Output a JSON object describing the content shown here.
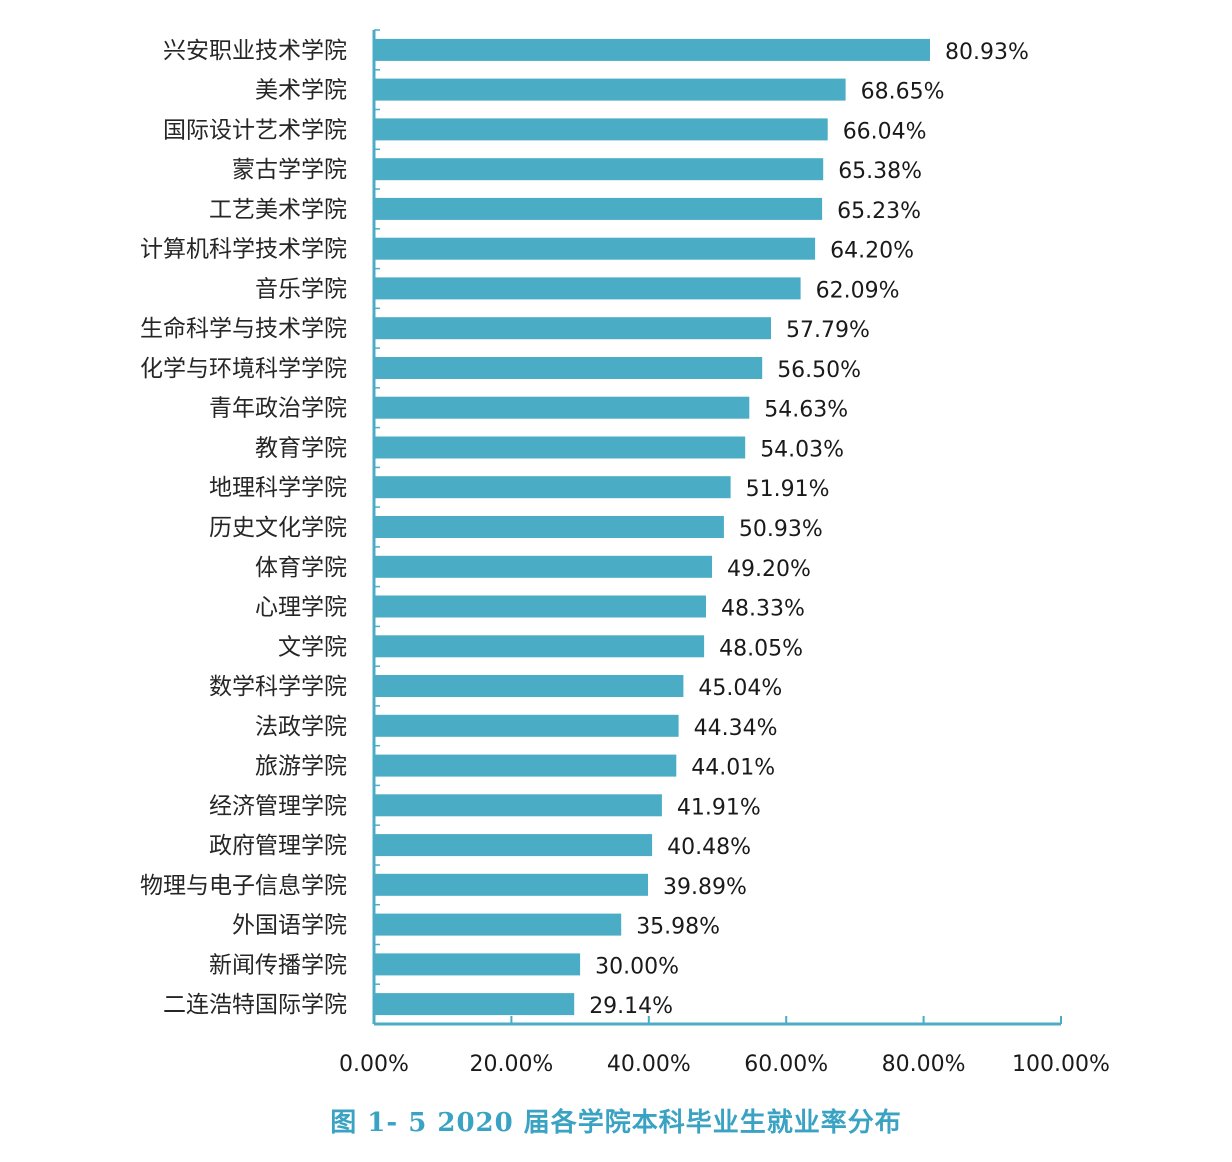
{
  "caption": "图 1- 5  2020 届各学院本科毕业生就业率分布",
  "colors": {
    "bar": "#4bacc6",
    "axis": "#4bacc6",
    "caption": "#3aa2c2"
  },
  "chart_data": {
    "type": "bar",
    "orientation": "horizontal",
    "categories": [
      "兴安职业技术学院",
      "美术学院",
      "国际设计艺术学院",
      "蒙古学学院",
      "工艺美术学院",
      "计算机科学技术学院",
      "音乐学院",
      "生命科学与技术学院",
      "化学与环境科学学院",
      "青年政治学院",
      "教育学院",
      "地理科学学院",
      "历史文化学院",
      "体育学院",
      "心理学院",
      "文学院",
      "数学科学学院",
      "法政学院",
      "旅游学院",
      "经济管理学院",
      "政府管理学院",
      "物理与电子信息学院",
      "外国语学院",
      "新闻传播学院",
      "二连浩特国际学院"
    ],
    "values": [
      80.93,
      68.65,
      66.04,
      65.38,
      65.23,
      64.2,
      62.09,
      57.79,
      56.5,
      54.63,
      54.03,
      51.91,
      50.93,
      49.2,
      48.33,
      48.05,
      45.04,
      44.34,
      44.01,
      41.91,
      40.48,
      39.89,
      35.98,
      30.0,
      29.14
    ],
    "value_labels": [
      "80.93%",
      "68.65%",
      "66.04%",
      "65.38%",
      "65.23%",
      "64.20%",
      "62.09%",
      "57.79%",
      "56.50%",
      "54.63%",
      "54.03%",
      "51.91%",
      "50.93%",
      "49.20%",
      "48.33%",
      "48.05%",
      "45.04%",
      "44.34%",
      "44.01%",
      "41.91%",
      "40.48%",
      "39.89%",
      "35.98%",
      "30.00%",
      "29.14%"
    ],
    "xlim": [
      0,
      100
    ],
    "xticks": [
      0,
      20,
      40,
      60,
      80,
      100
    ],
    "xtick_labels": [
      "0.00%",
      "20.00%",
      "40.00%",
      "60.00%",
      "80.00%",
      "100.00%"
    ],
    "grid": false,
    "legend": "none"
  }
}
